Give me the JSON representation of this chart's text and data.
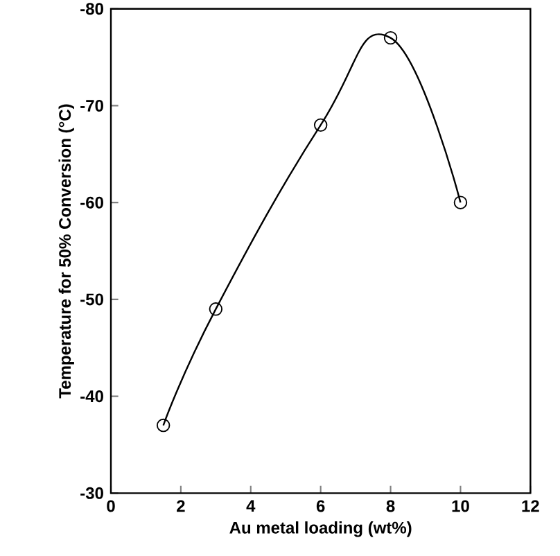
{
  "chart_data": {
    "type": "line",
    "xlabel": "Au metal loading (wt%)",
    "ylabel": "Temperature for 50% Conversion (°C)",
    "x": [
      1.5,
      3,
      6,
      8,
      10
    ],
    "series": [
      {
        "color": "#000000",
        "values": [
          -37,
          -49,
          -68,
          -77,
          -60
        ]
      }
    ],
    "xlim": [
      0,
      12
    ],
    "xticks": [
      0,
      2,
      4,
      6,
      8,
      10,
      12
    ],
    "ylim": [
      -30,
      -80
    ],
    "yticks": [
      -30,
      -40,
      -50,
      -60,
      -70,
      -80
    ],
    "marker": "circle",
    "line_style": "solid",
    "grid": false
  }
}
